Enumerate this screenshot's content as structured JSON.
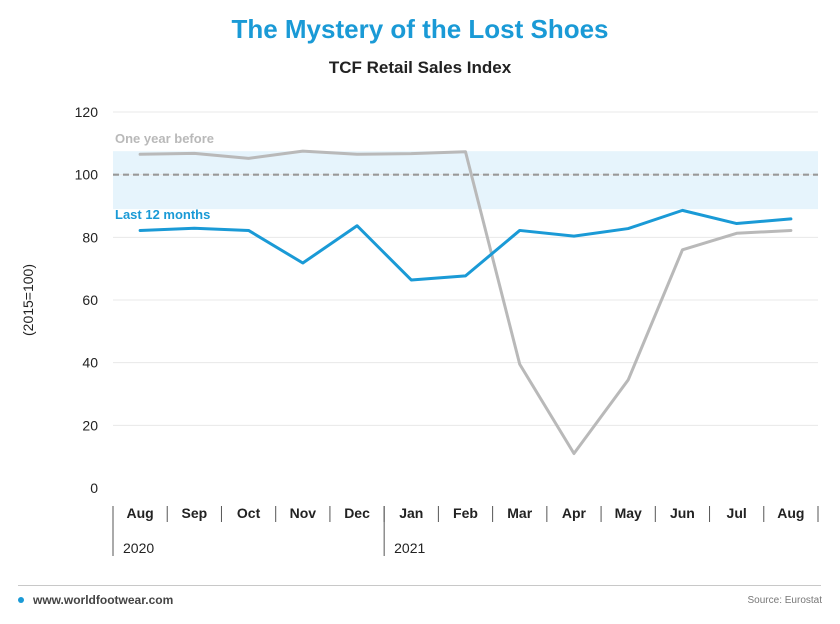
{
  "page": {
    "title": "The Mystery of the Lost Shoes",
    "subtitle": "TCF Retail Sales Index",
    "footer_site": "www.worldfootwear.com",
    "footer_source": "Source: Eurostat"
  },
  "chart_data": {
    "type": "line",
    "title": "The Mystery of the Lost Shoes",
    "subtitle": "TCF Retail Sales Index",
    "ylabel": "(2015=100)",
    "xlabel": "",
    "categories": [
      "Aug",
      "Sep",
      "Oct",
      "Nov",
      "Dec",
      "Jan",
      "Feb",
      "Mar",
      "Apr",
      "May",
      "Jun",
      "Jul",
      "Aug"
    ],
    "year_labels": [
      {
        "label": "2020",
        "start_index": 0
      },
      {
        "label": "2021",
        "start_index": 5
      }
    ],
    "ylim": [
      0,
      120
    ],
    "yticks": [
      0,
      20,
      40,
      60,
      80,
      100,
      120
    ],
    "grid": true,
    "reference_line": {
      "value": 100
    },
    "shaded_band": {
      "from": 89,
      "to": 107.5,
      "color": "#e6f4fc"
    },
    "series": [
      {
        "name": "One year before",
        "color": "#b9b9b9",
        "values": [
          106.5,
          106.8,
          105.2,
          107.5,
          106.5,
          106.7,
          107.3,
          39.5,
          11,
          34.5,
          76,
          81.3,
          82.2
        ]
      },
      {
        "name": "Last 12 months",
        "color": "#1a9ad6",
        "values": [
          82.2,
          82.9,
          82.2,
          71.8,
          83.7,
          66.4,
          67.7,
          82.2,
          80.4,
          82.8,
          88.6,
          84.4,
          85.9
        ]
      }
    ],
    "colors": {
      "reference_line": "#999999",
      "grid": "#e8e8e8",
      "axis_text": "#222222"
    }
  }
}
